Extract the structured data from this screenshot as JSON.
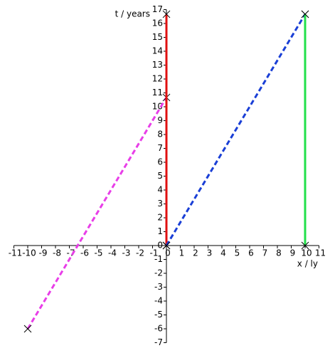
{
  "chart_data": {
    "type": "line",
    "xlabel": "x / ly",
    "ylabel": "t / years",
    "xlim": [
      -11,
      11
    ],
    "ylim": [
      -7,
      17
    ],
    "xticks": [
      -11,
      -10,
      -9,
      -8,
      -7,
      -6,
      -5,
      -4,
      -3,
      -2,
      -1,
      0,
      1,
      2,
      3,
      4,
      5,
      6,
      7,
      8,
      9,
      10,
      11
    ],
    "yticks": [
      -7,
      -6,
      -5,
      -4,
      -3,
      -2,
      -1,
      0,
      1,
      2,
      3,
      4,
      5,
      6,
      7,
      8,
      9,
      10,
      11,
      12,
      13,
      14,
      15,
      16,
      17
    ],
    "marker": "x",
    "series": [
      {
        "color": "#e83ee8",
        "linestyle": "dashed",
        "x": [
          -10,
          0
        ],
        "values": [
          -6,
          10.67
        ]
      },
      {
        "color": "#e01010",
        "linestyle": "solid",
        "x": [
          0,
          0
        ],
        "values": [
          0,
          16.67
        ]
      },
      {
        "color": "#1a3fd6",
        "linestyle": "dashed",
        "x": [
          0,
          10
        ],
        "values": [
          0,
          16.67
        ]
      },
      {
        "color": "#22e04a",
        "linestyle": "solid",
        "x": [
          10,
          10
        ],
        "values": [
          0,
          16.67
        ]
      }
    ]
  }
}
